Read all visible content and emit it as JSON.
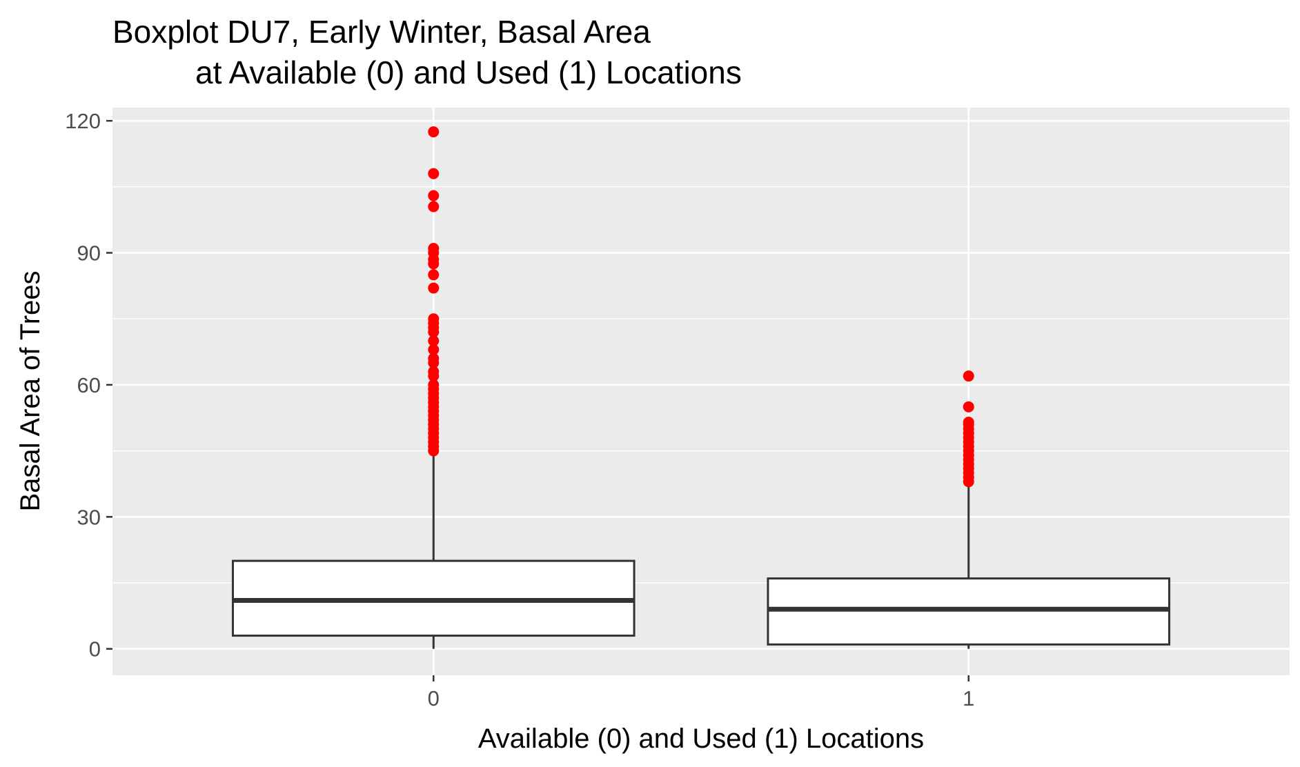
{
  "chart_data": {
    "type": "boxplot",
    "title_line1": "Boxplot DU7, Early Winter, Basal Area",
    "title_line2": "at Available (0) and Used (1) Locations",
    "xlabel": "Available (0) and Used (1) Locations",
    "ylabel": "Basal Area of Trees",
    "ylim": [
      -6,
      123
    ],
    "yticks": [
      0,
      30,
      60,
      90,
      120
    ],
    "grid": true,
    "colors": {
      "panel_background": "#ebebeb",
      "grid": "#ffffff",
      "box_fill": "#ffffff",
      "box_line": "#333333",
      "outlier": "#ff0000"
    },
    "categories": [
      "0",
      "1"
    ],
    "boxes": [
      {
        "category": "0",
        "min": 0,
        "q1": 3,
        "median": 11,
        "q3": 20,
        "max": 45,
        "outliers": [
          45,
          46,
          47,
          48,
          49,
          50,
          51,
          52,
          53,
          54,
          55,
          56,
          57,
          58,
          59,
          60,
          62,
          63,
          65,
          66,
          68,
          70,
          72,
          73,
          74,
          75,
          82,
          85,
          87.5,
          88.5,
          90,
          91,
          100.5,
          103,
          108,
          117.5
        ]
      },
      {
        "category": "1",
        "min": 0,
        "q1": 1,
        "median": 9,
        "q3": 16,
        "max": 38,
        "outliers": [
          38,
          39,
          40,
          41,
          42,
          43,
          44,
          45,
          46,
          47,
          48,
          49,
          50,
          51,
          51.5,
          55,
          62
        ]
      }
    ]
  }
}
